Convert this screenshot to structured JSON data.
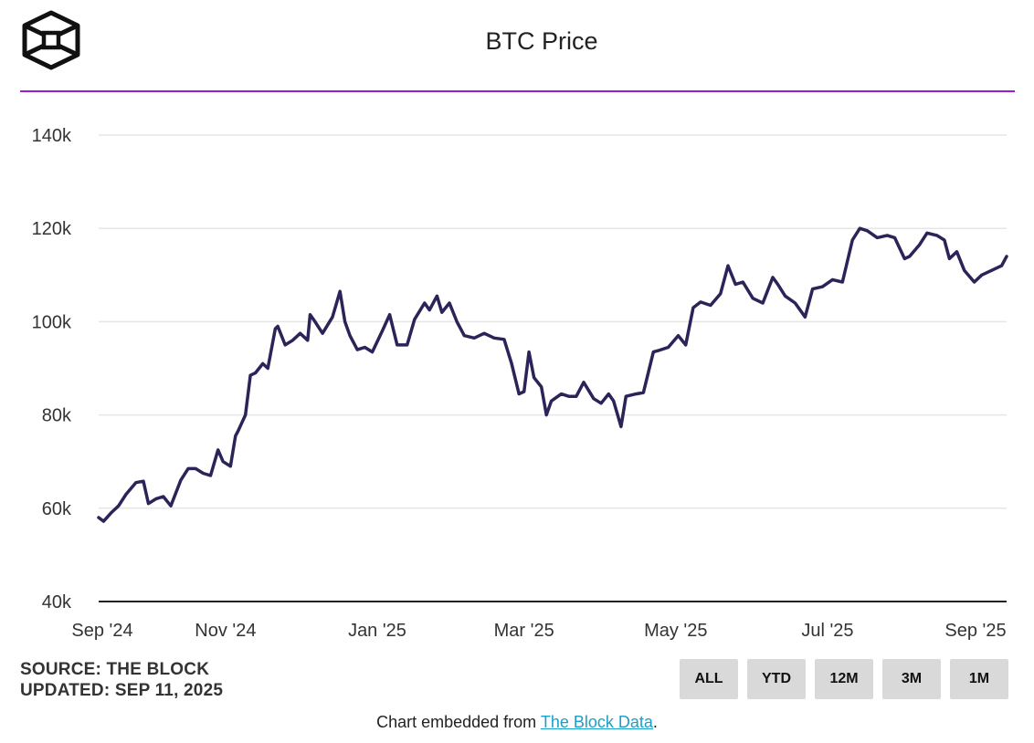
{
  "header": {
    "title": "BTC Price",
    "logo_icon": "the-block-cube-logo"
  },
  "footer": {
    "source": "SOURCE: THE BLOCK",
    "updated": "UPDATED: SEP 11, 2025",
    "embed_prefix": "Chart embedded from ",
    "embed_link": "The Block Data",
    "embed_suffix": "."
  },
  "range_buttons": [
    "ALL",
    "YTD",
    "12M",
    "3M",
    "1M"
  ],
  "colors": {
    "line": "#2b2459",
    "accent": "#9b1fd1",
    "grid": "#e6e6e6",
    "link": "#1a9fc9"
  },
  "chart_data": {
    "type": "line",
    "title": "BTC Price",
    "ylim": [
      40000,
      140000
    ],
    "yticks": [
      40000,
      60000,
      80000,
      100000,
      120000,
      140000
    ],
    "ytick_labels": [
      "40k",
      "60k",
      "80k",
      "100k",
      "120k",
      "140k"
    ],
    "xlim": [
      "2024-09-11",
      "2025-09-11"
    ],
    "xticks": [
      "2024-09-01",
      "2024-11-01",
      "2025-01-01",
      "2025-03-01",
      "2025-05-01",
      "2025-07-01",
      "2025-09-01"
    ],
    "xtick_labels": [
      "Sep '24",
      "Nov '24",
      "Jan '25",
      "Mar '25",
      "May '25",
      "Jul '25",
      "Sep '25"
    ],
    "grid": true,
    "series": [
      {
        "x": [
          "2024-09-11",
          "2024-09-13",
          "2024-09-16",
          "2024-09-19",
          "2024-09-22",
          "2024-09-26",
          "2024-09-29",
          "2024-10-01",
          "2024-10-04",
          "2024-10-07",
          "2024-10-10",
          "2024-10-14",
          "2024-10-17",
          "2024-10-20",
          "2024-10-23",
          "2024-10-26",
          "2024-10-29",
          "2024-10-31",
          "2024-11-03",
          "2024-11-05",
          "2024-11-06",
          "2024-11-09",
          "2024-11-11",
          "2024-11-13",
          "2024-11-16",
          "2024-11-18",
          "2024-11-21",
          "2024-11-22",
          "2024-11-25",
          "2024-11-28",
          "2024-12-01",
          "2024-12-04",
          "2024-12-05",
          "2024-12-07",
          "2024-12-10",
          "2024-12-14",
          "2024-12-17",
          "2024-12-19",
          "2024-12-21",
          "2024-12-24",
          "2024-12-27",
          "2024-12-30",
          "2025-01-03",
          "2025-01-06",
          "2025-01-09",
          "2025-01-13",
          "2025-01-16",
          "2025-01-20",
          "2025-01-22",
          "2025-01-25",
          "2025-01-27",
          "2025-01-30",
          "2025-02-02",
          "2025-02-05",
          "2025-02-09",
          "2025-02-13",
          "2025-02-17",
          "2025-02-21",
          "2025-02-24",
          "2025-02-27",
          "2025-03-01",
          "2025-03-03",
          "2025-03-05",
          "2025-03-08",
          "2025-03-10",
          "2025-03-12",
          "2025-03-16",
          "2025-03-19",
          "2025-03-22",
          "2025-03-25",
          "2025-03-29",
          "2025-04-01",
          "2025-04-04",
          "2025-04-06",
          "2025-04-09",
          "2025-04-11",
          "2025-04-15",
          "2025-04-18",
          "2025-04-22",
          "2025-04-24",
          "2025-04-28",
          "2025-05-02",
          "2025-05-05",
          "2025-05-08",
          "2025-05-11",
          "2025-05-15",
          "2025-05-19",
          "2025-05-22",
          "2025-05-25",
          "2025-05-28",
          "2025-06-01",
          "2025-06-05",
          "2025-06-09",
          "2025-06-11",
          "2025-06-14",
          "2025-06-18",
          "2025-06-22",
          "2025-06-25",
          "2025-06-29",
          "2025-07-03",
          "2025-07-07",
          "2025-07-11",
          "2025-07-14",
          "2025-07-17",
          "2025-07-21",
          "2025-07-25",
          "2025-07-28",
          "2025-08-01",
          "2025-08-03",
          "2025-08-07",
          "2025-08-10",
          "2025-08-14",
          "2025-08-17",
          "2025-08-19",
          "2025-08-22",
          "2025-08-25",
          "2025-08-29",
          "2025-09-01",
          "2025-09-05",
          "2025-09-09",
          "2025-09-11"
        ],
        "y": [
          58000,
          57200,
          59000,
          60500,
          63000,
          65500,
          65800,
          61000,
          62000,
          62500,
          60500,
          66000,
          68500,
          68500,
          67500,
          67000,
          72500,
          70000,
          69000,
          75500,
          76500,
          80000,
          88500,
          89000,
          91000,
          90000,
          98500,
          99000,
          95000,
          96000,
          97500,
          96000,
          101500,
          100000,
          97500,
          101000,
          106500,
          100000,
          97000,
          94000,
          94500,
          93500,
          98000,
          101500,
          95000,
          95000,
          100500,
          104000,
          102500,
          105500,
          102000,
          104000,
          100000,
          97000,
          96500,
          97500,
          96500,
          96200,
          91000,
          84500,
          85000,
          93500,
          88000,
          86000,
          80000,
          83000,
          84500,
          84000,
          84000,
          87000,
          83500,
          82500,
          84500,
          83000,
          77500,
          84000,
          84500,
          84800,
          93500,
          93800,
          94500,
          97000,
          95000,
          103000,
          104200,
          103500,
          106000,
          112000,
          108000,
          108500,
          105000,
          104000,
          109500,
          108000,
          105500,
          104000,
          101000,
          107000,
          107500,
          109000,
          108500,
          117500,
          120000,
          119500,
          118000,
          118500,
          118000,
          113500,
          114000,
          116500,
          119000,
          118500,
          117500,
          113500,
          115000,
          111000,
          108500,
          110000,
          111000,
          112000,
          114000
        ]
      }
    ]
  }
}
